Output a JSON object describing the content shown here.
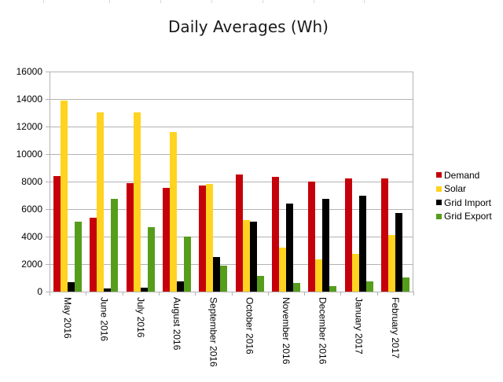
{
  "chart_data": {
    "type": "bar",
    "title": "Daily Averages (Wh)",
    "xlabel": "",
    "ylabel": "",
    "ylim": [
      0,
      16000
    ],
    "yticks": [
      0,
      2000,
      4000,
      6000,
      8000,
      10000,
      12000,
      14000,
      16000
    ],
    "grid": true,
    "legend_position": "right",
    "categories": [
      "May 2016",
      "June 2016",
      "July 2016",
      "August 2016",
      "September 2016",
      "October 2016",
      "November 2016",
      "December 2016",
      "January 2017",
      "February 2017"
    ],
    "series": [
      {
        "name": "Demand",
        "color": "#c5000b",
        "values": [
          8400,
          5370,
          7890,
          7540,
          7710,
          8510,
          8340,
          8000,
          8230,
          8230
        ]
      },
      {
        "name": "Solar",
        "color": "#ffd320",
        "values": [
          13890,
          13030,
          13030,
          11600,
          7830,
          5200,
          3200,
          2340,
          2740,
          4110
        ]
      },
      {
        "name": "Grid Import",
        "color": "#000000",
        "values": [
          690,
          230,
          290,
          740,
          2510,
          5090,
          6400,
          6740,
          6970,
          5710
        ]
      },
      {
        "name": "Grid Export",
        "color": "#579d1c",
        "values": [
          5090,
          6740,
          4690,
          4000,
          1890,
          1140,
          630,
          400,
          740,
          1030
        ]
      }
    ]
  },
  "legend": {
    "items": [
      {
        "label": "Demand",
        "color": "#c5000b"
      },
      {
        "label": "Solar",
        "color": "#ffd320"
      },
      {
        "label": "Grid Import",
        "color": "#000000"
      },
      {
        "label": "Grid Export",
        "color": "#579d1c"
      }
    ]
  }
}
